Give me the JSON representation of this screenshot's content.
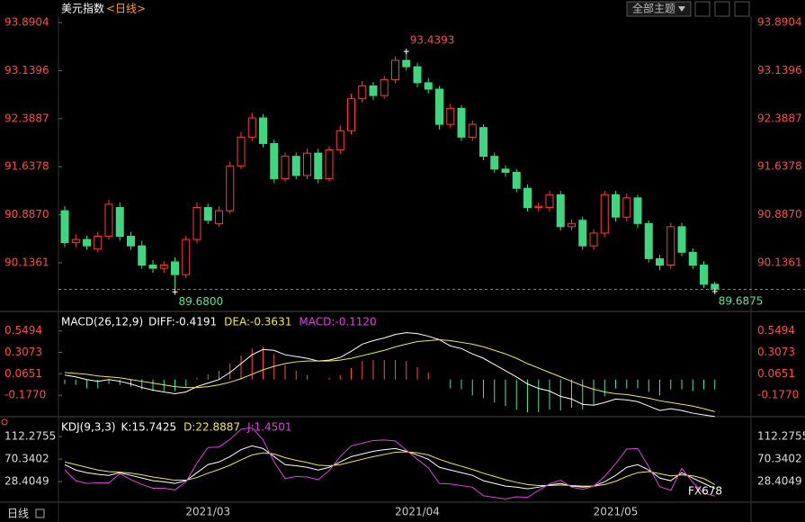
{
  "header": {
    "title": "美元指数",
    "period": "<日线>",
    "theme_button": "全部主题"
  },
  "chart_data": [
    {
      "type": "candlestick",
      "categories": [
        null,
        null,
        null,
        null,
        null,
        null,
        null,
        null,
        null,
        null,
        null,
        null,
        null,
        "2021/03",
        null,
        null,
        null,
        null,
        null,
        null,
        null,
        null,
        null,
        null,
        null,
        null,
        null,
        null,
        null,
        null,
        null,
        null,
        "2021/04",
        null,
        null,
        null,
        null,
        null,
        null,
        null,
        null,
        null,
        null,
        null,
        null,
        null,
        null,
        null,
        null,
        null,
        "2021/05",
        null,
        null,
        null,
        null,
        null,
        null,
        null,
        null,
        null
      ],
      "open": [
        90.95,
        90.45,
        90.5,
        90.35,
        90.55,
        91.0,
        90.55,
        90.4,
        90.1,
        90.05,
        90.15,
        89.95,
        90.5,
        91.0,
        90.75,
        90.95,
        91.65,
        92.1,
        92.4,
        92.0,
        91.45,
        91.8,
        91.5,
        91.85,
        91.45,
        91.9,
        92.2,
        92.7,
        92.9,
        92.75,
        93.0,
        93.3,
        93.2,
        92.95,
        92.85,
        92.3,
        92.55,
        92.1,
        92.25,
        91.8,
        91.6,
        91.55,
        91.3,
        91.0,
        91.0,
        91.2,
        90.7,
        90.8,
        90.4,
        90.6,
        91.2,
        90.85,
        91.15,
        90.75,
        90.2,
        90.1,
        90.7,
        90.3,
        90.1,
        89.8
      ],
      "high": [
        91.02,
        90.58,
        90.56,
        90.62,
        91.12,
        91.08,
        90.62,
        90.48,
        90.18,
        90.16,
        90.22,
        90.56,
        91.08,
        91.06,
        91.02,
        91.72,
        92.18,
        92.48,
        92.46,
        92.06,
        91.86,
        91.86,
        91.92,
        91.92,
        91.96,
        92.28,
        92.78,
        92.98,
        92.96,
        93.06,
        93.36,
        93.4393,
        93.26,
        93.02,
        92.9,
        92.62,
        92.6,
        92.36,
        92.3,
        91.86,
        91.66,
        91.6,
        91.36,
        91.08,
        91.26,
        91.26,
        90.82,
        90.86,
        90.66,
        91.26,
        91.26,
        91.22,
        91.2,
        90.8,
        90.26,
        90.76,
        90.76,
        90.36,
        90.16,
        89.84
      ],
      "low": [
        90.38,
        90.38,
        90.34,
        90.3,
        90.5,
        90.48,
        90.34,
        90.04,
        89.98,
        89.98,
        89.68,
        89.9,
        90.44,
        90.74,
        90.7,
        90.9,
        91.6,
        92.04,
        91.94,
        91.38,
        91.4,
        91.44,
        91.44,
        91.38,
        91.4,
        91.84,
        92.14,
        92.64,
        92.68,
        92.7,
        92.94,
        93.14,
        92.88,
        92.78,
        92.22,
        92.24,
        92.04,
        92.04,
        91.74,
        91.54,
        91.48,
        91.24,
        90.94,
        90.94,
        90.94,
        90.64,
        90.64,
        90.34,
        90.34,
        90.54,
        90.78,
        90.78,
        90.68,
        90.14,
        90.02,
        90.04,
        90.24,
        90.04,
        89.74,
        89.6875
      ],
      "close": [
        90.45,
        90.5,
        90.4,
        90.55,
        91.05,
        90.55,
        90.4,
        90.1,
        90.05,
        90.1,
        89.95,
        90.5,
        91.0,
        90.8,
        90.95,
        91.65,
        92.1,
        92.4,
        92.0,
        91.45,
        91.8,
        91.5,
        91.85,
        91.45,
        91.9,
        92.2,
        92.7,
        92.9,
        92.75,
        93.0,
        93.3,
        93.2,
        92.95,
        92.85,
        92.3,
        92.55,
        92.1,
        92.3,
        91.8,
        91.6,
        91.55,
        91.3,
        91.0,
        91.02,
        91.2,
        90.7,
        90.75,
        90.4,
        90.6,
        91.2,
        90.85,
        91.15,
        90.75,
        90.2,
        90.1,
        90.7,
        90.3,
        90.1,
        89.8,
        89.72
      ],
      "up_color": "#ff3b3b",
      "down_color": "#3fd67f",
      "ylim": [
        89.39,
        93.99
      ],
      "yticks": [
        {
          "value": 90.1361,
          "label": "90.1361"
        },
        {
          "value": 90.887,
          "label": "90.8870"
        },
        {
          "value": 91.6378,
          "label": "91.6378"
        },
        {
          "value": 92.3887,
          "label": "92.3887"
        },
        {
          "value": 93.1396,
          "label": "93.1396"
        },
        {
          "value": 93.8904,
          "label": "93.8904"
        }
      ],
      "tick_color": "#ff4a4a",
      "price_markers": [
        {
          "value": 93.4393,
          "label": "93.4393",
          "color": "#ff4a4a"
        },
        {
          "value": 89.68,
          "label": "89.6800",
          "color": "#66e08f"
        },
        {
          "value": 89.6875,
          "label": "89.6875",
          "color": "#66e08f"
        }
      ]
    },
    {
      "type": "macd",
      "title": "MACD(26,12,9)",
      "series": [
        {
          "name": "DIFF:-0.4191",
          "color": "#ffffff",
          "style": "line",
          "values": [
            0.05,
            0.03,
            0.0,
            -0.02,
            0.0,
            -0.02,
            -0.05,
            -0.09,
            -0.12,
            -0.14,
            -0.16,
            -0.14,
            -0.08,
            -0.04,
            0.0,
            0.08,
            0.18,
            0.28,
            0.34,
            0.33,
            0.28,
            0.26,
            0.24,
            0.21,
            0.22,
            0.25,
            0.32,
            0.4,
            0.44,
            0.47,
            0.51,
            0.53,
            0.52,
            0.49,
            0.45,
            0.38,
            0.35,
            0.29,
            0.24,
            0.17,
            0.1,
            0.03,
            -0.05,
            -0.1,
            -0.13,
            -0.19,
            -0.22,
            -0.28,
            -0.29,
            -0.26,
            -0.22,
            -0.23,
            -0.25,
            -0.3,
            -0.35,
            -0.33,
            -0.35,
            -0.38,
            -0.4,
            -0.4191
          ]
        },
        {
          "name": "DEA:-0.3631",
          "color": "#f2e84a",
          "style": "line",
          "values": [
            0.08,
            0.07,
            0.06,
            0.04,
            0.03,
            0.02,
            0.0,
            -0.02,
            -0.04,
            -0.06,
            -0.08,
            -0.09,
            -0.09,
            -0.08,
            -0.06,
            -0.03,
            0.01,
            0.06,
            0.11,
            0.15,
            0.18,
            0.2,
            0.21,
            0.21,
            0.21,
            0.22,
            0.24,
            0.27,
            0.3,
            0.33,
            0.37,
            0.4,
            0.43,
            0.44,
            0.45,
            0.44,
            0.42,
            0.4,
            0.37,
            0.33,
            0.29,
            0.24,
            0.18,
            0.13,
            0.08,
            0.03,
            -0.02,
            -0.07,
            -0.11,
            -0.14,
            -0.16,
            -0.17,
            -0.19,
            -0.21,
            -0.24,
            -0.26,
            -0.28,
            -0.3,
            -0.33,
            -0.3631
          ]
        },
        {
          "name": "MACD:-0.1120",
          "color": "#e040e0",
          "style": "bar",
          "up_color": "#ff4a4a",
          "down_color": "#4fe0a0",
          "values": [
            -0.05,
            -0.06,
            -0.1,
            -0.1,
            -0.05,
            -0.06,
            -0.08,
            -0.11,
            -0.13,
            -0.13,
            -0.13,
            -0.08,
            0.02,
            0.06,
            0.1,
            0.18,
            0.27,
            0.35,
            0.37,
            0.29,
            0.16,
            0.1,
            0.05,
            0.0,
            0.02,
            0.05,
            0.13,
            0.21,
            0.22,
            0.22,
            0.22,
            0.21,
            0.14,
            0.08,
            0.0,
            -0.1,
            -0.11,
            -0.18,
            -0.21,
            -0.26,
            -0.3,
            -0.34,
            -0.37,
            -0.37,
            -0.34,
            -0.35,
            -0.32,
            -0.34,
            -0.29,
            -0.19,
            -0.1,
            -0.1,
            -0.1,
            -0.14,
            -0.18,
            -0.11,
            -0.11,
            -0.13,
            -0.11,
            -0.112
          ]
        }
      ],
      "ylim": [
        -0.42,
        0.75
      ],
      "yticks": [
        {
          "value": -0.177,
          "label": "-0.1770"
        },
        0.0651,
        0.3073,
        0.5494
      ],
      "tick_color": "#ff4a4a"
    },
    {
      "type": "kdj",
      "title": "KDJ(9,3,3)",
      "series": [
        {
          "name": "K:15.7425",
          "color": "#ffffff",
          "values": [
            60,
            50,
            45,
            42,
            40,
            45,
            40,
            35,
            30,
            28,
            25,
            30,
            45,
            60,
            65,
            75,
            88,
            95,
            90,
            75,
            60,
            58,
            55,
            50,
            55,
            65,
            75,
            80,
            85,
            88,
            90,
            85,
            78,
            70,
            55,
            50,
            45,
            40,
            30,
            25,
            20,
            18,
            15,
            18,
            22,
            25,
            20,
            18,
            20,
            28,
            40,
            55,
            60,
            50,
            35,
            30,
            45,
            35,
            25,
            15.7425
          ]
        },
        {
          "name": "D:22.8887",
          "color": "#f2e84a",
          "values": [
            65,
            60,
            55,
            50,
            47,
            46,
            44,
            41,
            37,
            34,
            31,
            31,
            36,
            44,
            51,
            59,
            69,
            78,
            82,
            80,
            73,
            68,
            64,
            59,
            58,
            60,
            65,
            70,
            75,
            79,
            83,
            84,
            82,
            78,
            70,
            63,
            57,
            51,
            44,
            38,
            32,
            27,
            23,
            21,
            21,
            22,
            21,
            20,
            20,
            23,
            29,
            38,
            45,
            47,
            43,
            39,
            41,
            39,
            34,
            22.8887
          ]
        },
        {
          "name": "J:1.4501",
          "color": "#e040e0",
          "values": [
            50,
            30,
            25,
            26,
            26,
            43,
            32,
            23,
            16,
            16,
            13,
            28,
            63,
            92,
            93,
            107,
            126,
            129,
            106,
            65,
            34,
            38,
            37,
            32,
            49,
            75,
            95,
            100,
            105,
            106,
            104,
            87,
            70,
            54,
            25,
            24,
            21,
            18,
            2,
            -1,
            -4,
            0,
            -1,
            12,
            24,
            31,
            18,
            14,
            20,
            38,
            62,
            89,
            90,
            56,
            19,
            12,
            53,
            27,
            7,
            1.4501
          ]
        }
      ],
      "ylim": [
        -10,
        146
      ],
      "yticks": [
        {
          "value": 28.4049,
          "label": "28.4049"
        },
        {
          "value": 70.3402,
          "label": "70.3402"
        },
        {
          "value": 112.2755,
          "label": "112.2755"
        }
      ],
      "tick_color": "#dddddd"
    }
  ],
  "footer": {
    "period": "日线",
    "watermark": "FX678"
  }
}
